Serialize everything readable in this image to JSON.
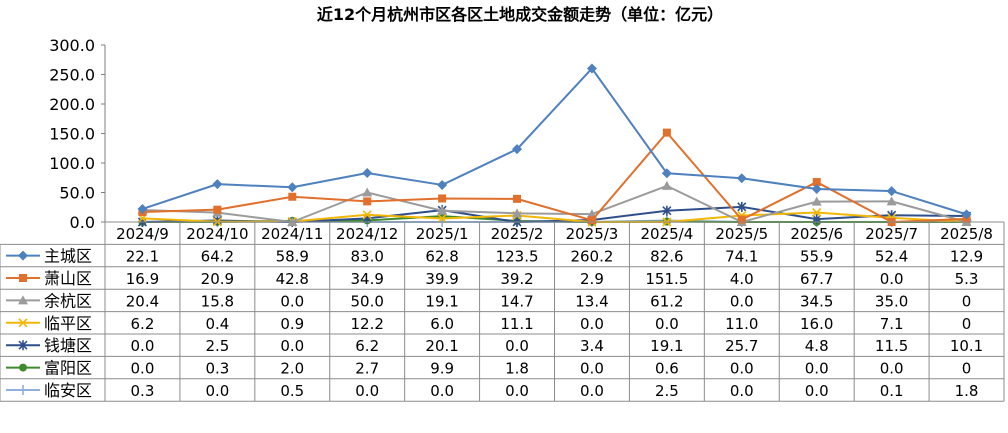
{
  "chart_data": {
    "type": "line",
    "title": "近12个月杭州市区各区土地成交金额走势（单位：亿元）",
    "categories": [
      "2024/9",
      "2024/10",
      "2024/11",
      "2024/12",
      "2025/1",
      "2025/2",
      "2025/3",
      "2025/4",
      "2025/5",
      "2025/6",
      "2025/7",
      "2025/8"
    ],
    "ylim": [
      0,
      300
    ],
    "yticks": [
      "0.0",
      "50.0",
      "100.0",
      "150.0",
      "200.0",
      "250.0",
      "300.0"
    ],
    "grid": false,
    "legend": "data-table",
    "series": [
      {
        "name": "主城区",
        "color": "#4e81bd",
        "marker": "diamond",
        "values": [
          22.1,
          64.2,
          58.9,
          83.0,
          62.8,
          123.5,
          260.2,
          82.6,
          74.1,
          55.9,
          52.4,
          12.9
        ],
        "labels": [
          "22.1",
          "64.2",
          "58.9",
          "83.0",
          "62.8",
          "123.5",
          "260.2",
          "82.6",
          "74.1",
          "55.9",
          "52.4",
          "12.9"
        ]
      },
      {
        "name": "萧山区",
        "color": "#e0702c",
        "marker": "square",
        "values": [
          16.9,
          20.9,
          42.8,
          34.9,
          39.9,
          39.2,
          2.9,
          151.5,
          4.0,
          67.7,
          0.0,
          5.3
        ],
        "labels": [
          "16.9",
          "20.9",
          "42.8",
          "34.9",
          "39.9",
          "39.2",
          "2.9",
          "151.5",
          "4.0",
          "67.7",
          "0.0",
          "5.3"
        ]
      },
      {
        "name": "余杭区",
        "color": "#9b9b9b",
        "marker": "triangle",
        "values": [
          20.4,
          15.8,
          0.0,
          50.0,
          19.1,
          14.7,
          13.4,
          61.2,
          0.0,
          34.5,
          35.0,
          0
        ],
        "labels": [
          "20.4",
          "15.8",
          "0.0",
          "50.0",
          "19.1",
          "14.7",
          "13.4",
          "61.2",
          "0.0",
          "34.5",
          "35.0",
          "0"
        ]
      },
      {
        "name": "临平区",
        "color": "#f2b705",
        "marker": "x",
        "values": [
          6.2,
          0.4,
          0.9,
          12.2,
          6.0,
          11.1,
          0.0,
          0.0,
          11.0,
          16.0,
          7.1,
          0
        ],
        "labels": [
          "6.2",
          "0.4",
          "0.9",
          "12.2",
          "6.0",
          "11.1",
          "0.0",
          "0.0",
          "11.0",
          "16.0",
          "7.1",
          "0"
        ]
      },
      {
        "name": "钱塘区",
        "color": "#2e4f8a",
        "marker": "star",
        "values": [
          0.0,
          2.5,
          0.0,
          6.2,
          20.1,
          0.0,
          3.4,
          19.1,
          25.7,
          4.8,
          11.5,
          10.1
        ],
        "labels": [
          "0.0",
          "2.5",
          "0.0",
          "6.2",
          "20.1",
          "0.0",
          "3.4",
          "19.1",
          "25.7",
          "4.8",
          "11.5",
          "10.1"
        ]
      },
      {
        "name": "富阳区",
        "color": "#3e8b2f",
        "marker": "circle",
        "values": [
          0.0,
          0.3,
          2.0,
          2.7,
          9.9,
          1.8,
          0.0,
          0.6,
          0.0,
          0.0,
          0.0,
          0
        ],
        "labels": [
          "0.0",
          "0.3",
          "2.0",
          "2.7",
          "9.9",
          "1.8",
          "0.0",
          "0.6",
          "0.0",
          "0.0",
          "0.0",
          "0"
        ]
      },
      {
        "name": "临安区",
        "color": "#8fb1dc",
        "marker": "plus",
        "values": [
          0.3,
          0.0,
          0.5,
          0.0,
          0.0,
          0.0,
          0.0,
          2.5,
          0.0,
          0.0,
          0.1,
          1.8
        ],
        "labels": [
          "0.3",
          "0.0",
          "0.5",
          "0.0",
          "0.0",
          "0.0",
          "0.0",
          "2.5",
          "0.0",
          "0.0",
          "0.1",
          "1.8"
        ]
      }
    ]
  }
}
